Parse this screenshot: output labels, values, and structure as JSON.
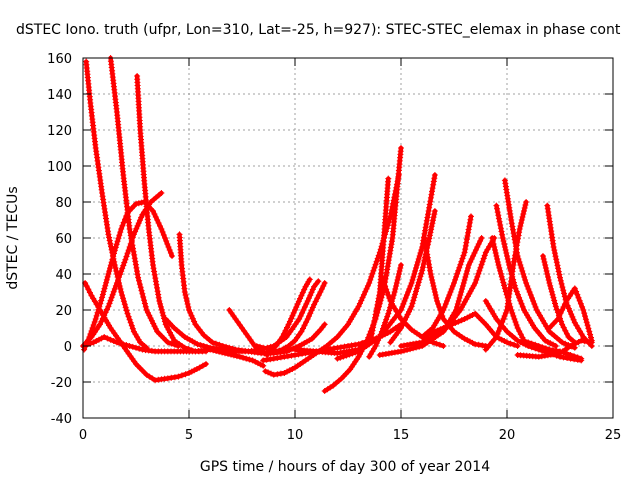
{
  "chart_data": {
    "type": "scatter",
    "marker": "plus",
    "color": "#ff0000",
    "title": "dSTEC Iono. truth (ufpr, Lon=310, Lat=-25, h=927): STEC-STEC_elemax in phase cont",
    "xlabel": "GPS time / hours of day 300 of year 2014",
    "ylabel": "dSTEC  / TECUs",
    "xlim": [
      0,
      25
    ],
    "ylim": [
      -40,
      160
    ],
    "grid": true,
    "xticks": [
      0,
      5,
      10,
      15,
      20,
      25
    ],
    "yticks": [
      -40,
      -20,
      0,
      20,
      40,
      60,
      80,
      100,
      120,
      140,
      160
    ],
    "xtick_labels": [
      "0",
      "5",
      "10",
      "15",
      "20",
      "25"
    ],
    "ytick_labels": [
      "-40",
      "-20",
      "0",
      "20",
      "40",
      "60",
      "80",
      "100",
      "120",
      "140",
      "160"
    ],
    "series": [
      {
        "x": [
          0.15,
          0.35,
          0.6,
          0.9,
          1.2,
          1.5,
          1.8,
          2.1,
          2.4,
          2.7,
          3.0
        ],
        "y": [
          158,
          135,
          110,
          85,
          62,
          45,
          30,
          18,
          8,
          2,
          -1
        ]
      },
      {
        "x": [
          1.3,
          1.6,
          1.9,
          2.2,
          2.6,
          3.0,
          3.5,
          4.0,
          4.5
        ],
        "y": [
          160,
          130,
          95,
          65,
          38,
          20,
          8,
          2,
          0
        ]
      },
      {
        "x": [
          2.55,
          2.7,
          2.9,
          3.1,
          3.3,
          3.6,
          3.9,
          4.3,
          4.8,
          5.3,
          5.8
        ],
        "y": [
          150,
          120,
          90,
          65,
          45,
          25,
          12,
          3,
          -1,
          -3,
          -3
        ]
      },
      {
        "x": [
          0.05,
          0.3,
          0.6,
          0.9,
          1.2,
          1.5,
          1.8,
          2.1,
          2.5,
          2.9,
          3.3,
          3.7,
          4.2
        ],
        "y": [
          -2,
          5,
          15,
          27,
          40,
          53,
          65,
          74,
          79,
          80,
          75,
          65,
          50
        ]
      },
      {
        "x": [
          0.0,
          0.4,
          0.8,
          1.2,
          1.6,
          2.0,
          2.4,
          2.8,
          3.2,
          3.7
        ],
        "y": [
          0,
          5,
          12,
          22,
          35,
          48,
          62,
          73,
          80,
          85
        ]
      },
      {
        "x": [
          0.1,
          0.4,
          0.8,
          1.3,
          1.9,
          2.5,
          3.0,
          3.4,
          4.0,
          4.5,
          5.0,
          5.5,
          5.8
        ],
        "y": [
          35,
          28,
          20,
          10,
          0,
          -10,
          -16,
          -19,
          -18,
          -17,
          -15,
          -12,
          -10
        ]
      },
      {
        "x": [
          0.0,
          0.5,
          1.0,
          1.6,
          2.2,
          2.8,
          3.4,
          4.0,
          4.6,
          5.3,
          6.0,
          6.7,
          7.4,
          8.0,
          8.5
        ],
        "y": [
          0,
          2,
          5,
          2,
          0,
          -2,
          -3,
          -3,
          -3,
          -3,
          -2,
          -4,
          -6,
          -8,
          -11
        ]
      },
      {
        "x": [
          4.55,
          4.65,
          4.8,
          5.0,
          5.3,
          5.7,
          6.1,
          6.6,
          7.2,
          7.8,
          8.4,
          9.0,
          9.6,
          10.2,
          10.8,
          11.2,
          11.4
        ],
        "y": [
          62,
          45,
          30,
          20,
          12,
          6,
          2,
          0,
          -2,
          -3,
          -4,
          -4,
          -3,
          0,
          4,
          9,
          12
        ]
      },
      {
        "x": [
          3.9,
          4.3,
          4.8,
          5.4,
          6.0,
          6.6,
          7.2,
          7.8,
          8.4,
          9.0,
          9.6,
          10.2,
          10.6,
          10.9,
          11.1
        ],
        "y": [
          15,
          10,
          5,
          1,
          -1,
          -2,
          -3,
          -3,
          -2,
          0,
          5,
          15,
          25,
          33,
          36
        ]
      },
      {
        "x": [
          6.9,
          7.2,
          7.5,
          7.8,
          8.1,
          8.4,
          8.7
        ],
        "y": [
          20,
          15,
          10,
          5,
          0,
          -3,
          -5
        ]
      },
      {
        "x": [
          8.2,
          8.5,
          8.8,
          9.1,
          9.4,
          9.7,
          10.0,
          10.3,
          10.6,
          10.9,
          11.2,
          11.4
        ],
        "y": [
          0,
          -1,
          -2,
          -3,
          -2,
          0,
          3,
          8,
          15,
          23,
          30,
          35
        ]
      },
      {
        "x": [
          8.8,
          9.1,
          9.4,
          9.7,
          10.0,
          10.3,
          10.5,
          10.7
        ],
        "y": [
          -3,
          0,
          5,
          12,
          20,
          28,
          33,
          37
        ]
      },
      {
        "x": [
          8.5,
          9.0,
          9.5,
          10.0,
          10.5,
          11.0,
          11.5,
          12.0,
          12.5,
          13.0,
          13.5,
          14.0,
          14.5,
          15.0
        ],
        "y": [
          -8,
          -7,
          -6,
          -5,
          -4,
          -3,
          -2,
          -1,
          0,
          1,
          3,
          5,
          8,
          12
        ]
      },
      {
        "x": [
          8.6,
          9.0,
          9.5,
          10.0,
          10.5,
          11.0,
          11.5,
          12.0,
          12.5,
          13.0,
          13.5,
          14.0,
          14.5,
          14.9
        ],
        "y": [
          -14,
          -16,
          -15,
          -12,
          -8,
          -4,
          0,
          5,
          12,
          22,
          35,
          52,
          72,
          95
        ]
      },
      {
        "x": [
          11.4,
          11.8,
          12.2,
          12.6,
          13.0,
          13.4,
          13.8,
          14.2,
          14.6,
          15.0
        ],
        "y": [
          -25,
          -22,
          -18,
          -13,
          -6,
          3,
          15,
          32,
          60,
          110
        ]
      },
      {
        "x": [
          10.0,
          11.0,
          12.0,
          13.0,
          13.6,
          14.0,
          14.4
        ],
        "y": [
          -2,
          -3,
          -4,
          -2,
          5,
          30,
          93
        ]
      },
      {
        "x": [
          13.5,
          13.8,
          14.1,
          14.4,
          14.7,
          15.0
        ],
        "y": [
          -6,
          0,
          8,
          18,
          30,
          45
        ]
      },
      {
        "x": [
          12.0,
          13.0,
          14.0,
          15.0,
          15.5,
          16.0,
          16.3,
          16.6
        ],
        "y": [
          -7,
          -3,
          5,
          20,
          35,
          55,
          75,
          95
        ]
      },
      {
        "x": [
          14.5,
          15.0,
          15.5,
          16.0,
          16.3,
          16.6
        ],
        "y": [
          2,
          10,
          22,
          42,
          58,
          75
        ]
      },
      {
        "x": [
          14.1,
          14.5,
          15.0,
          15.5,
          16.0,
          16.5,
          17.0
        ],
        "y": [
          38,
          25,
          15,
          9,
          5,
          2,
          0
        ]
      },
      {
        "x": [
          16.1,
          16.4,
          16.7,
          17.0,
          17.5,
          18.0,
          18.5,
          19.0
        ],
        "y": [
          60,
          40,
          25,
          15,
          8,
          4,
          1,
          0
        ]
      },
      {
        "x": [
          14.0,
          15.0,
          16.0,
          17.0,
          17.6,
          18.2,
          18.8
        ],
        "y": [
          -5,
          -3,
          0,
          8,
          20,
          45,
          60
        ]
      },
      {
        "x": [
          16.0,
          16.5,
          17.0,
          17.5,
          18.0,
          18.3
        ],
        "y": [
          5,
          10,
          20,
          35,
          52,
          72
        ]
      },
      {
        "x": [
          15.0,
          16.0,
          17.0,
          17.8,
          18.5,
          19.0,
          19.4
        ],
        "y": [
          0,
          2,
          8,
          20,
          35,
          52,
          60
        ]
      },
      {
        "x": [
          16.0,
          17.0,
          18.0,
          18.5,
          19.0,
          19.5,
          20.0,
          20.5
        ],
        "y": [
          5,
          10,
          15,
          18,
          12,
          5,
          2,
          0
        ]
      },
      {
        "x": [
          19.3,
          19.6,
          19.9,
          20.2,
          20.5,
          20.8,
          21.2
        ],
        "y": [
          60,
          45,
          32,
          20,
          10,
          3,
          0
        ]
      },
      {
        "x": [
          19.5,
          19.8,
          20.1,
          20.4,
          20.8,
          21.3,
          21.8,
          22.3
        ],
        "y": [
          78,
          60,
          45,
          32,
          20,
          10,
          3,
          0
        ]
      },
      {
        "x": [
          19.9,
          20.2,
          20.5,
          20.9,
          21.4,
          22.0,
          22.6,
          23.2
        ],
        "y": [
          92,
          70,
          50,
          35,
          20,
          8,
          2,
          -1
        ]
      },
      {
        "x": [
          19.0,
          19.5,
          20.0,
          20.5,
          21.0,
          21.5,
          22.0,
          22.5,
          23.0,
          23.5
        ],
        "y": [
          25,
          15,
          8,
          3,
          0,
          -2,
          -4,
          -6,
          -7,
          -8
        ]
      },
      {
        "x": [
          19.0,
          19.5,
          20.0,
          20.3,
          20.6,
          20.9
        ],
        "y": [
          -2,
          5,
          20,
          45,
          65,
          80
        ]
      },
      {
        "x": [
          21.9,
          22.2,
          22.5,
          22.8,
          23.2,
          23.6,
          24.0
        ],
        "y": [
          78,
          55,
          38,
          24,
          13,
          5,
          0
        ]
      },
      {
        "x": [
          21.7,
          22.0,
          22.3,
          22.6,
          22.9,
          23.2
        ],
        "y": [
          50,
          35,
          22,
          12,
          5,
          2
        ]
      },
      {
        "x": [
          21.0,
          21.5,
          22.0,
          22.5,
          23.0,
          23.5
        ],
        "y": [
          2,
          0,
          -2,
          -3,
          -5,
          -7
        ]
      },
      {
        "x": [
          22.0,
          22.4,
          22.8,
          23.2,
          23.6,
          24.0
        ],
        "y": [
          10,
          15,
          25,
          32,
          20,
          3
        ]
      },
      {
        "x": [
          20.5,
          21.5,
          22.5,
          23.0,
          23.5,
          24.0
        ],
        "y": [
          -5,
          -6,
          -4,
          0,
          3,
          2
        ]
      }
    ]
  }
}
